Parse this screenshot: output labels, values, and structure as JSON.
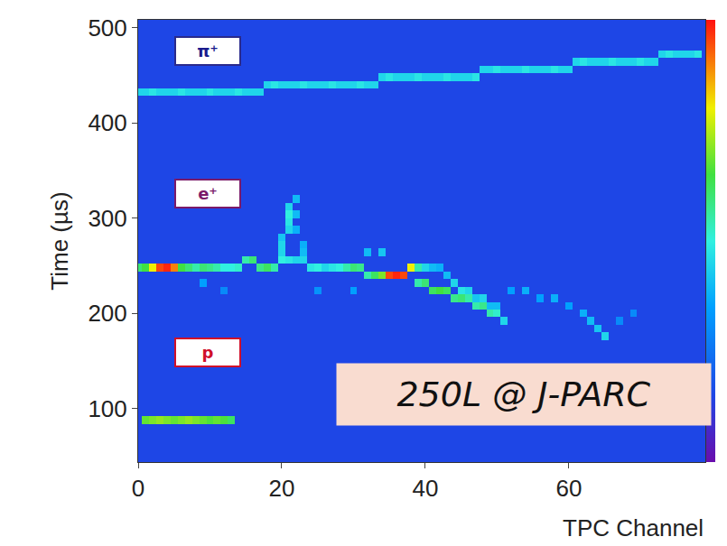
{
  "chart_data": {
    "type": "heatmap",
    "x_label": "TPC Channel",
    "y_label": "Time (µs)",
    "xlim": [
      0,
      79
    ],
    "ylim": [
      44,
      508
    ],
    "xticks": [
      0,
      20,
      40,
      60
    ],
    "yticks": [
      100,
      200,
      300,
      400,
      500
    ],
    "zlim": [
      0,
      100
    ],
    "annotations": [
      "π⁺",
      "e⁺",
      "p",
      "250L @ J-PARC"
    ],
    "channels": [
      0,
      1,
      2,
      3,
      4,
      5,
      6,
      7,
      8,
      9,
      10,
      11,
      12,
      13,
      14,
      15,
      16,
      17,
      18,
      19,
      20,
      21,
      22,
      23,
      24,
      25,
      26,
      27,
      28,
      29,
      30,
      31,
      32,
      33,
      34,
      35,
      36,
      37,
      38,
      39,
      40,
      41,
      42,
      43,
      44,
      45,
      46,
      47,
      48,
      49,
      50,
      51,
      52,
      53,
      54,
      55,
      56,
      57,
      58,
      59,
      60,
      61,
      62,
      63,
      64,
      65,
      66,
      67,
      68,
      69,
      70,
      71,
      72,
      73,
      74,
      75,
      76,
      77,
      78
    ],
    "times": [
      48,
      56,
      64,
      72,
      80,
      88,
      96,
      104,
      112,
      120,
      128,
      136,
      144,
      152,
      160,
      168,
      176,
      184,
      192,
      200,
      208,
      216,
      224,
      232,
      240,
      248,
      256,
      264,
      272,
      280,
      288,
      296,
      304,
      312,
      320,
      328,
      336,
      344,
      352,
      360,
      368,
      376,
      384,
      392,
      400,
      408,
      416,
      424,
      432,
      440,
      448,
      456,
      464,
      472,
      480,
      488,
      496,
      504
    ],
    "cells": [
      [
        0,
        432,
        45
      ],
      [
        1,
        432,
        45
      ],
      [
        2,
        432,
        48
      ],
      [
        3,
        432,
        45
      ],
      [
        4,
        432,
        45
      ],
      [
        5,
        432,
        45
      ],
      [
        6,
        432,
        48
      ],
      [
        7,
        432,
        45
      ],
      [
        8,
        432,
        45
      ],
      [
        9,
        432,
        45
      ],
      [
        10,
        432,
        48
      ],
      [
        11,
        432,
        45
      ],
      [
        12,
        432,
        45
      ],
      [
        13,
        432,
        45
      ],
      [
        14,
        432,
        48
      ],
      [
        15,
        432,
        45
      ],
      [
        16,
        432,
        45
      ],
      [
        17,
        432,
        45
      ],
      [
        18,
        440,
        45
      ],
      [
        19,
        440,
        48
      ],
      [
        20,
        440,
        45
      ],
      [
        21,
        440,
        45
      ],
      [
        22,
        440,
        45
      ],
      [
        23,
        440,
        48
      ],
      [
        24,
        440,
        45
      ],
      [
        25,
        440,
        45
      ],
      [
        26,
        440,
        45
      ],
      [
        27,
        440,
        48
      ],
      [
        28,
        440,
        45
      ],
      [
        29,
        440,
        45
      ],
      [
        30,
        440,
        45
      ],
      [
        31,
        440,
        48
      ],
      [
        32,
        440,
        45
      ],
      [
        33,
        440,
        45
      ],
      [
        34,
        448,
        45
      ],
      [
        35,
        448,
        48
      ],
      [
        36,
        448,
        45
      ],
      [
        37,
        448,
        45
      ],
      [
        38,
        448,
        45
      ],
      [
        39,
        448,
        48
      ],
      [
        40,
        448,
        45
      ],
      [
        41,
        448,
        45
      ],
      [
        42,
        448,
        45
      ],
      [
        43,
        448,
        48
      ],
      [
        44,
        448,
        45
      ],
      [
        45,
        448,
        45
      ],
      [
        46,
        448,
        45
      ],
      [
        47,
        448,
        48
      ],
      [
        48,
        456,
        45
      ],
      [
        49,
        456,
        45
      ],
      [
        50,
        456,
        48
      ],
      [
        51,
        456,
        45
      ],
      [
        52,
        456,
        45
      ],
      [
        53,
        456,
        45
      ],
      [
        54,
        456,
        48
      ],
      [
        55,
        456,
        45
      ],
      [
        56,
        456,
        45
      ],
      [
        57,
        456,
        45
      ],
      [
        58,
        456,
        48
      ],
      [
        59,
        456,
        45
      ],
      [
        60,
        456,
        45
      ],
      [
        61,
        464,
        45
      ],
      [
        62,
        464,
        48
      ],
      [
        63,
        464,
        45
      ],
      [
        64,
        464,
        45
      ],
      [
        65,
        464,
        45
      ],
      [
        66,
        464,
        48
      ],
      [
        67,
        464,
        45
      ],
      [
        68,
        464,
        45
      ],
      [
        69,
        464,
        45
      ],
      [
        70,
        464,
        48
      ],
      [
        71,
        464,
        45
      ],
      [
        72,
        464,
        45
      ],
      [
        73,
        472,
        45
      ],
      [
        74,
        472,
        48
      ],
      [
        75,
        472,
        45
      ],
      [
        76,
        472,
        45
      ],
      [
        77,
        472,
        45
      ],
      [
        78,
        472,
        48
      ],
      [
        0,
        248,
        60
      ],
      [
        1,
        248,
        65
      ],
      [
        2,
        248,
        80
      ],
      [
        3,
        248,
        95
      ],
      [
        4,
        248,
        98
      ],
      [
        5,
        248,
        90
      ],
      [
        6,
        248,
        65
      ],
      [
        7,
        248,
        60
      ],
      [
        8,
        248,
        55
      ],
      [
        9,
        248,
        60
      ],
      [
        10,
        248,
        58
      ],
      [
        11,
        248,
        55
      ],
      [
        12,
        248,
        50
      ],
      [
        13,
        248,
        50
      ],
      [
        14,
        248,
        52
      ],
      [
        15,
        256,
        55
      ],
      [
        16,
        256,
        60
      ],
      [
        17,
        248,
        58
      ],
      [
        18,
        248,
        62
      ],
      [
        19,
        248,
        55
      ],
      [
        20,
        256,
        50
      ],
      [
        21,
        256,
        48
      ],
      [
        22,
        256,
        45
      ],
      [
        23,
        256,
        45
      ],
      [
        24,
        248,
        48
      ],
      [
        25,
        248,
        50
      ],
      [
        26,
        248,
        45
      ],
      [
        27,
        248,
        48
      ],
      [
        28,
        248,
        50
      ],
      [
        29,
        248,
        55
      ],
      [
        30,
        248,
        60
      ],
      [
        31,
        248,
        58
      ],
      [
        32,
        240,
        55
      ],
      [
        33,
        240,
        62
      ],
      [
        34,
        240,
        70
      ],
      [
        35,
        240,
        95
      ],
      [
        36,
        240,
        98
      ],
      [
        37,
        240,
        95
      ],
      [
        38,
        248,
        80
      ],
      [
        39,
        248,
        55
      ],
      [
        40,
        248,
        45
      ],
      [
        41,
        248,
        40
      ],
      [
        42,
        248,
        38
      ],
      [
        43,
        240,
        40
      ],
      [
        20,
        264,
        45
      ],
      [
        20,
        272,
        45
      ],
      [
        20,
        280,
        42
      ],
      [
        21,
        288,
        45
      ],
      [
        21,
        296,
        48
      ],
      [
        21,
        304,
        50
      ],
      [
        21,
        312,
        45
      ],
      [
        22,
        320,
        40
      ],
      [
        22,
        304,
        40
      ],
      [
        22,
        288,
        38
      ],
      [
        23,
        272,
        38
      ],
      [
        23,
        264,
        40
      ],
      [
        39,
        232,
        55
      ],
      [
        40,
        232,
        60
      ],
      [
        41,
        224,
        62
      ],
      [
        42,
        224,
        65
      ],
      [
        43,
        224,
        62
      ],
      [
        44,
        216,
        58
      ],
      [
        45,
        216,
        60
      ],
      [
        46,
        216,
        55
      ],
      [
        47,
        208,
        55
      ],
      [
        48,
        208,
        58
      ],
      [
        49,
        200,
        55
      ],
      [
        50,
        200,
        52
      ],
      [
        51,
        192,
        45
      ],
      [
        44,
        232,
        45
      ],
      [
        45,
        224,
        48
      ],
      [
        46,
        224,
        45
      ],
      [
        47,
        216,
        42
      ],
      [
        48,
        216,
        45
      ],
      [
        49,
        208,
        40
      ],
      [
        50,
        208,
        40
      ],
      [
        52,
        224,
        35
      ],
      [
        54,
        224,
        38
      ],
      [
        56,
        216,
        35
      ],
      [
        58,
        216,
        38
      ],
      [
        60,
        208,
        35
      ],
      [
        62,
        200,
        38
      ],
      [
        63,
        192,
        40
      ],
      [
        64,
        184,
        42
      ],
      [
        65,
        176,
        45
      ],
      [
        67,
        192,
        30
      ],
      [
        69,
        200,
        30
      ],
      [
        9,
        232,
        35
      ],
      [
        12,
        224,
        30
      ],
      [
        25,
        224,
        32
      ],
      [
        30,
        224,
        35
      ],
      [
        32,
        264,
        40
      ],
      [
        34,
        264,
        42
      ],
      [
        1,
        88,
        68
      ],
      [
        2,
        88,
        70
      ],
      [
        3,
        88,
        72
      ],
      [
        4,
        88,
        70
      ],
      [
        5,
        88,
        68
      ],
      [
        6,
        88,
        70
      ],
      [
        7,
        88,
        72
      ],
      [
        8,
        88,
        70
      ],
      [
        9,
        88,
        68
      ],
      [
        10,
        88,
        66
      ],
      [
        11,
        88,
        68
      ],
      [
        12,
        88,
        66
      ],
      [
        13,
        88,
        62
      ]
    ]
  }
}
